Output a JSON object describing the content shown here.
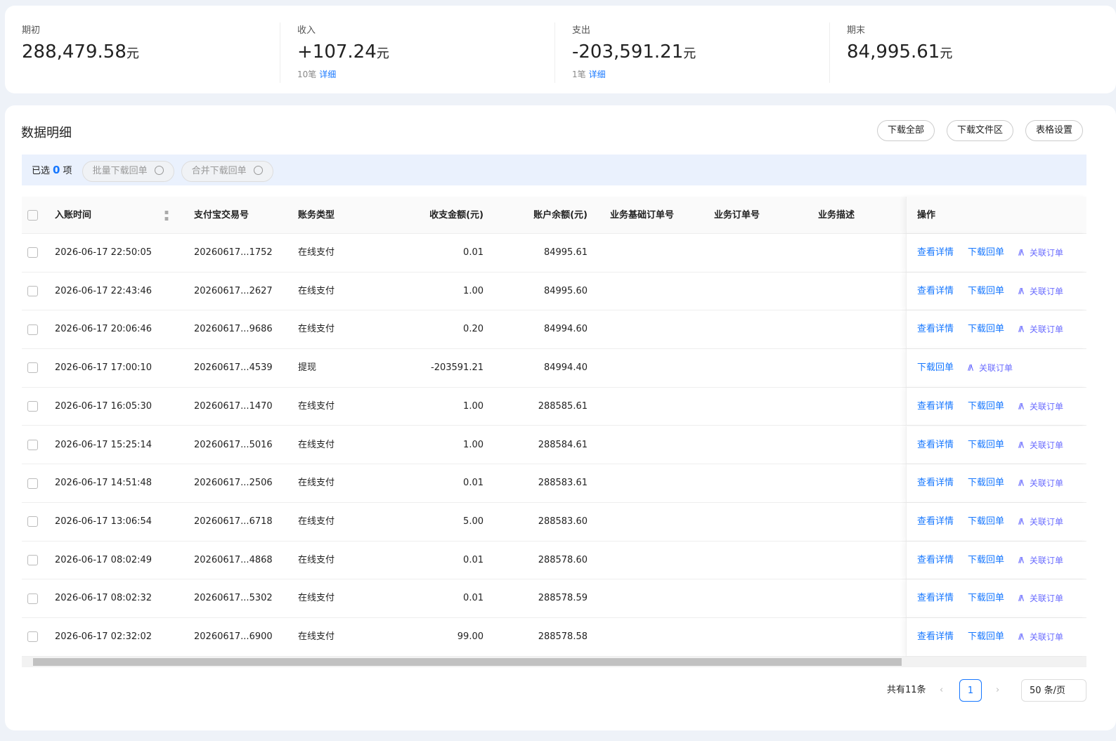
{
  "summary": [
    {
      "label": "期初",
      "amount": "288,479.58",
      "unit": "元"
    },
    {
      "label": "收入",
      "amount": "+107.24",
      "unit": "元",
      "count": "10笔",
      "link": "详细"
    },
    {
      "label": "支出",
      "amount": "-203,591.21",
      "unit": "元",
      "count": "1笔",
      "link": "详细"
    },
    {
      "label": "期末",
      "amount": "84,995.61",
      "unit": "元"
    }
  ],
  "detail": {
    "title": "数据明细",
    "buttons": [
      "下载全部",
      "下载文件区",
      "表格设置"
    ],
    "selection": {
      "prefix": "已选",
      "count": "0",
      "suffix": "项",
      "actions": [
        "批量下载回单",
        "合并下载回单"
      ]
    }
  },
  "table": {
    "columns": [
      "入账时间",
      "支付宝交易号",
      "账务类型",
      "收支金额(元)",
      "账户余额(元)",
      "业务基础订单号",
      "业务订单号",
      "业务描述",
      "操作"
    ],
    "rows": [
      {
        "cells": [
          "2026-06-17 22:50:05",
          "20260617...1752",
          "在线支付",
          "0.01",
          "84995.61"
        ],
        "actions": [
          "查看详情",
          "下载回单",
          "关联订单"
        ]
      },
      {
        "cells": [
          "2026-06-17 22:43:46",
          "20260617...2627",
          "在线支付",
          "1.00",
          "84995.60"
        ],
        "actions": [
          "查看详情",
          "下载回单",
          "关联订单"
        ]
      },
      {
        "cells": [
          "2026-06-17 20:06:46",
          "20260617...9686",
          "在线支付",
          "0.20",
          "84994.60"
        ],
        "actions": [
          "查看详情",
          "下载回单",
          "关联订单"
        ]
      },
      {
        "cells": [
          "2026-06-17 17:00:10",
          "20260617...4539",
          "提现",
          "-203591.21",
          "84994.40"
        ],
        "actions": [
          "下载回单",
          "关联订单"
        ]
      },
      {
        "cells": [
          "2026-06-17 16:05:30",
          "20260617...1470",
          "在线支付",
          "1.00",
          "288585.61"
        ],
        "actions": [
          "查看详情",
          "下载回单",
          "关联订单"
        ]
      },
      {
        "cells": [
          "2026-06-17 15:25:14",
          "20260617...5016",
          "在线支付",
          "1.00",
          "288584.61"
        ],
        "actions": [
          "查看详情",
          "下载回单",
          "关联订单"
        ]
      },
      {
        "cells": [
          "2026-06-17 14:51:48",
          "20260617...2506",
          "在线支付",
          "0.01",
          "288583.61"
        ],
        "actions": [
          "查看详情",
          "下载回单",
          "关联订单"
        ]
      },
      {
        "cells": [
          "2026-06-17 13:06:54",
          "20260617...6718",
          "在线支付",
          "5.00",
          "288583.60"
        ],
        "actions": [
          "查看详情",
          "下载回单",
          "关联订单"
        ]
      },
      {
        "cells": [
          "2026-06-17 08:02:49",
          "20260617...4868",
          "在线支付",
          "0.01",
          "288578.60"
        ],
        "actions": [
          "查看详情",
          "下载回单",
          "关联订单"
        ]
      },
      {
        "cells": [
          "2026-06-17 08:02:32",
          "20260617...5302",
          "在线支付",
          "0.01",
          "288578.59"
        ],
        "actions": [
          "查看详情",
          "下载回单",
          "关联订单"
        ]
      },
      {
        "cells": [
          "2026-06-17 02:32:02",
          "20260617...6900",
          "在线支付",
          "99.00",
          "288578.58"
        ],
        "actions": [
          "查看详情",
          "下载回单",
          "关联订单"
        ]
      }
    ]
  },
  "pagination": {
    "total": "共有11条",
    "page": "1",
    "size": "50 条/页"
  }
}
